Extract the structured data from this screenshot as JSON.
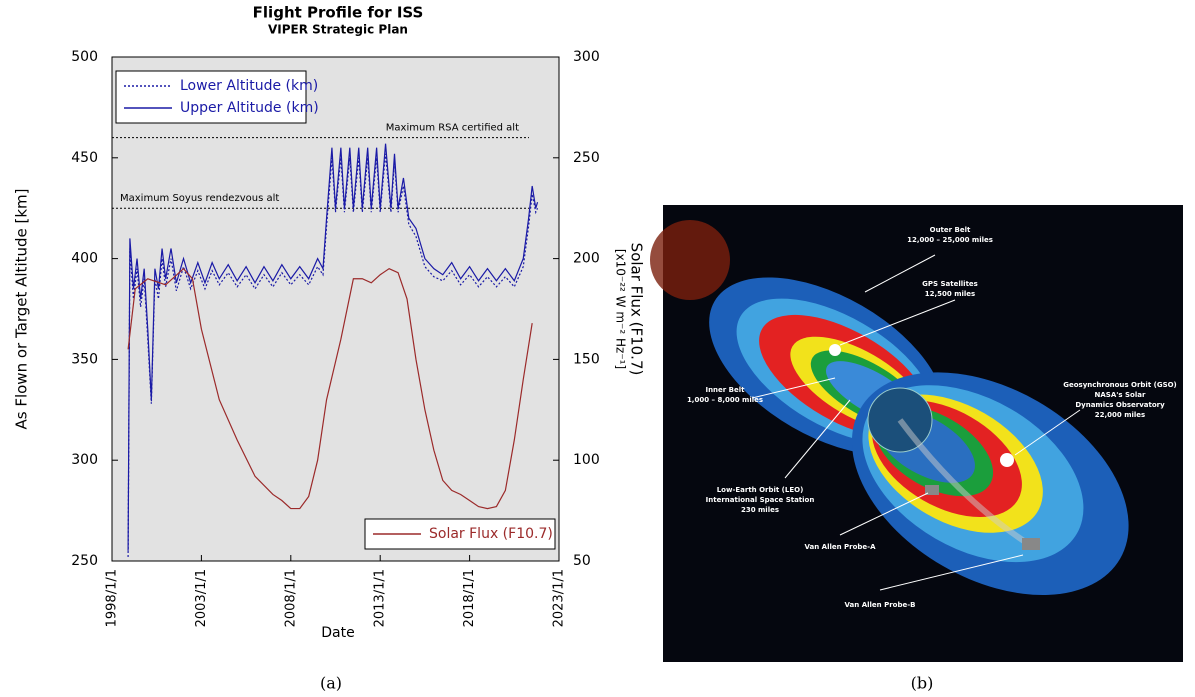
{
  "chart_data": {
    "type": "line",
    "title": "Flight Profile for ISS",
    "subtitle": "VIPER Strategic Plan",
    "x_label": "Date",
    "y_label": "As Flown or Target Altitude [km]",
    "y2_label": "Solar Flux (F10.7)",
    "y2_label_units": "[x10⁻²² W m⁻² Hz⁻¹]",
    "xlim": [
      1998,
      2023
    ],
    "xticks": [
      {
        "value": 1998,
        "label": "1998/1/1"
      },
      {
        "value": 2003,
        "label": "2003/1/1"
      },
      {
        "value": 2008,
        "label": "2008/1/1"
      },
      {
        "value": 2013,
        "label": "2013/1/1"
      },
      {
        "value": 2018,
        "label": "2018/1/1"
      },
      {
        "value": 2023,
        "label": "2023/1/1"
      }
    ],
    "ylim": [
      250,
      500
    ],
    "yticks": [
      250,
      300,
      350,
      400,
      450,
      500
    ],
    "y2lim": [
      50,
      300
    ],
    "y2ticks": [
      50,
      100,
      150,
      200,
      250,
      300
    ],
    "reference_lines": [
      {
        "value": 460,
        "label": "Maximum RSA certified alt"
      },
      {
        "value": 425,
        "label": "Maximum Soyus rendezvous alt"
      }
    ],
    "x": [
      1998.9,
      1999.0,
      1999.2,
      1999.4,
      1999.6,
      1999.8,
      2000.0,
      2000.2,
      2000.4,
      2000.6,
      2000.8,
      2001.0,
      2001.3,
      2001.6,
      2002.0,
      2002.4,
      2002.8,
      2003.2,
      2003.6,
      2004.0,
      2004.5,
      2005.0,
      2005.5,
      2006.0,
      2006.5,
      2007.0,
      2007.5,
      2008.0,
      2008.5,
      2009.0,
      2009.5,
      2009.8,
      2010.0,
      2010.3,
      2010.5,
      2010.8,
      2011.0,
      2011.3,
      2011.5,
      2011.8,
      2012.0,
      2012.3,
      2012.5,
      2012.8,
      2013.0,
      2013.3,
      2013.6,
      2013.8,
      2014.0,
      2014.3,
      2014.6,
      2015.0,
      2015.5,
      2016.0,
      2016.5,
      2017.0,
      2017.5,
      2018.0,
      2018.5,
      2019.0,
      2019.5,
      2020.0,
      2020.5,
      2021.0,
      2021.3,
      2021.5,
      2021.7,
      2021.8
    ],
    "series": [
      {
        "name": "Lower Altitude (km)",
        "color": "#1a1aa6",
        "dash": "dotted",
        "legend": "upper-left",
        "values": [
          252,
          405,
          380,
          395,
          376,
          390,
          360,
          328,
          390,
          380,
          400,
          386,
          400,
          384,
          396,
          385,
          394,
          385,
          394,
          387,
          393,
          386,
          392,
          385,
          392,
          386,
          393,
          387,
          392,
          387,
          396,
          392,
          416,
          450,
          423,
          450,
          423,
          450,
          423,
          450,
          423,
          450,
          423,
          450,
          423,
          452,
          423,
          448,
          423,
          436,
          417,
          411,
          396,
          391,
          389,
          394,
          387,
          392,
          386,
          391,
          386,
          391,
          386,
          396,
          416,
          432,
          423,
          425
        ]
      },
      {
        "name": "Upper Altitude (km)",
        "color": "#1a1aa6",
        "dash": "solid",
        "legend": "upper-left",
        "values": [
          255,
          410,
          385,
          400,
          380,
          395,
          365,
          330,
          395,
          385,
          405,
          390,
          405,
          388,
          400,
          388,
          398,
          388,
          398,
          390,
          397,
          389,
          396,
          388,
          396,
          389,
          397,
          390,
          396,
          390,
          400,
          395,
          420,
          455,
          425,
          455,
          425,
          455,
          425,
          455,
          425,
          455,
          425,
          455,
          425,
          457,
          425,
          452,
          425,
          440,
          420,
          415,
          400,
          395,
          392,
          398,
          390,
          396,
          389,
          395,
          389,
          395,
          389,
          400,
          420,
          436,
          425,
          428
        ]
      },
      {
        "name": "Solar Flux (F10.7)",
        "color": "#9b2a2a",
        "dash": "solid",
        "axis": "y2",
        "legend": "lower-right",
        "x": [
          1998.9,
          1999.3,
          2000.0,
          2001.0,
          2002.0,
          2002.5,
          2003.0,
          2004.0,
          2005.0,
          2006.0,
          2007.0,
          2007.5,
          2008.0,
          2008.5,
          2009.0,
          2009.5,
          2010.0,
          2010.8,
          2011.5,
          2012.0,
          2012.5,
          2013.0,
          2013.5,
          2014.0,
          2014.5,
          2015.0,
          2015.5,
          2016.0,
          2016.5,
          2017.0,
          2017.5,
          2018.0,
          2018.5,
          2019.0,
          2019.5,
          2020.0,
          2020.5,
          2021.0,
          2021.5
        ],
        "values": [
          155,
          185,
          190,
          187,
          195,
          190,
          165,
          130,
          110,
          92,
          83,
          80,
          76,
          76,
          82,
          100,
          130,
          160,
          190,
          190,
          188,
          192,
          195,
          193,
          180,
          150,
          125,
          105,
          90,
          85,
          83,
          80,
          77,
          76,
          77,
          85,
          110,
          140,
          168
        ]
      }
    ]
  },
  "illustration": {
    "labels": [
      {
        "lines": [
          "Outer Belt",
          "12,000 – 25,000 miles"
        ]
      },
      {
        "lines": [
          "GPS Satellites",
          "12,500 miles"
        ]
      },
      {
        "lines": [
          "Geosynchronous Orbit (GSO)",
          "NASA's Solar",
          "Dynamics Observatory",
          "22,000 miles"
        ]
      },
      {
        "lines": [
          "Inner Belt",
          "1,000 – 8,000 miles"
        ]
      },
      {
        "lines": [
          "Low-Earth Orbit (LEO)",
          "International Space Station",
          "230 miles"
        ]
      },
      {
        "lines": [
          "Van Allen Probe-A"
        ]
      },
      {
        "lines": [
          "Van Allen Probe-B"
        ]
      }
    ]
  },
  "captions": [
    "(a)",
    "(b)"
  ]
}
